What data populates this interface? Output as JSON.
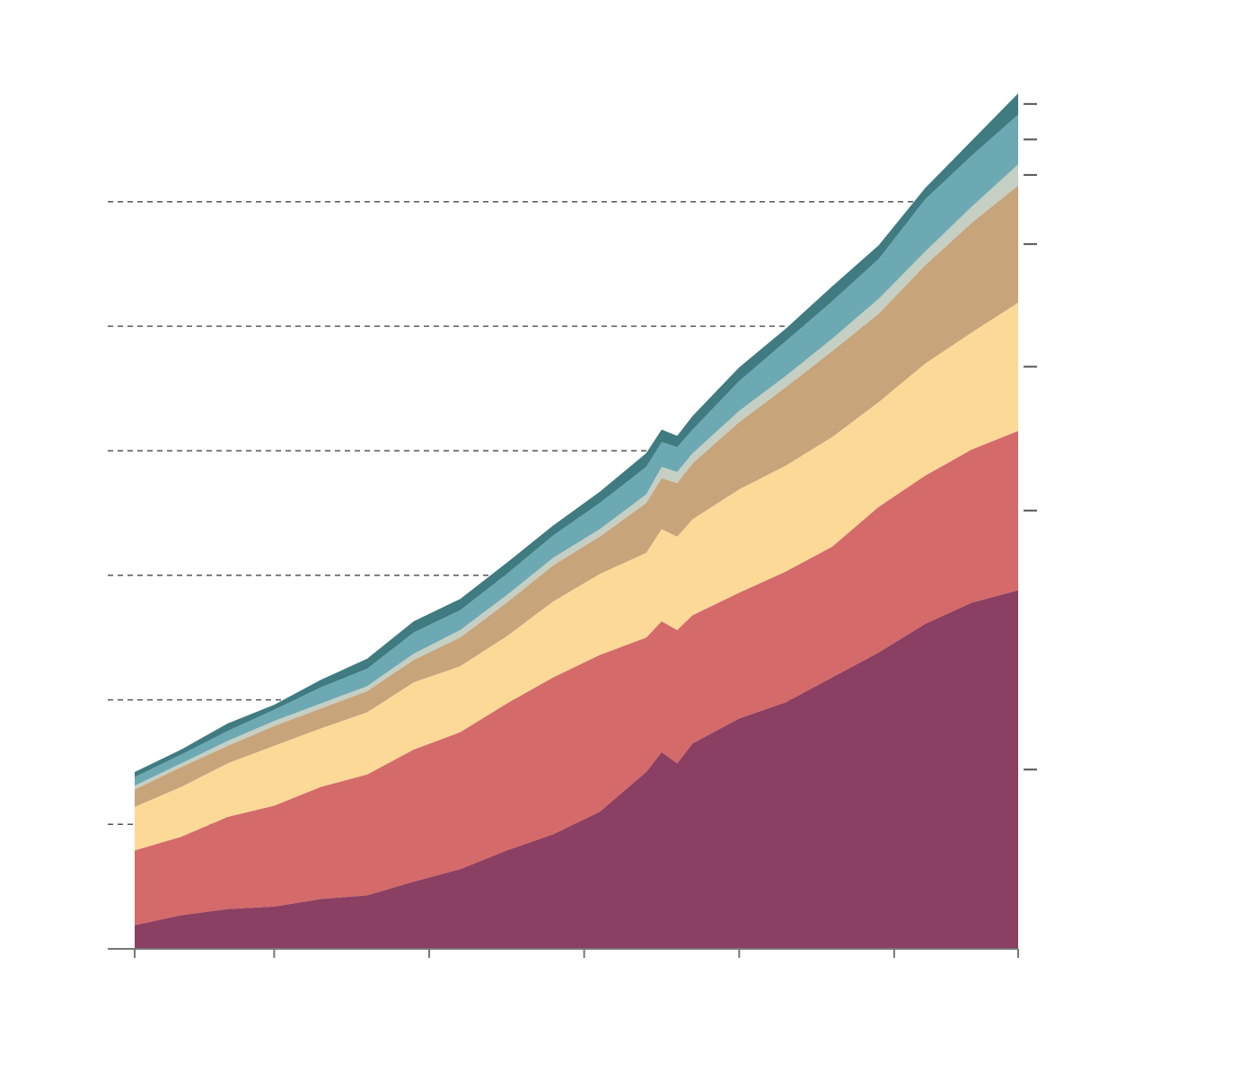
{
  "chart_data": {
    "type": "stacked_area",
    "x": [
      0,
      3,
      6,
      9,
      12,
      15,
      18,
      21,
      24,
      27,
      30,
      33,
      34,
      35,
      36,
      39,
      42,
      45,
      48,
      51,
      54,
      57
    ],
    "xlim": [
      0,
      57
    ],
    "xticks": [
      0,
      9,
      19,
      29,
      39,
      49,
      57
    ],
    "ylim": [
      0,
      7
    ],
    "yticks": [
      0,
      1,
      2,
      3,
      4,
      5,
      6
    ],
    "grid": true,
    "series": [
      {
        "color": "#8b3f62",
        "values": [
          0.19,
          0.27,
          0.32,
          0.34,
          0.4,
          0.43,
          0.54,
          0.64,
          0.79,
          0.92,
          1.1,
          1.42,
          1.58,
          1.49,
          1.65,
          1.85,
          1.98,
          2.18,
          2.38,
          2.61,
          2.78,
          2.88
        ]
      },
      {
        "color": "#d46a6a",
        "values": [
          0.6,
          0.63,
          0.74,
          0.81,
          0.9,
          0.97,
          1.06,
          1.1,
          1.18,
          1.26,
          1.26,
          1.08,
          1.05,
          1.07,
          1.03,
          1.01,
          1.05,
          1.05,
          1.17,
          1.19,
          1.23,
          1.28
        ]
      },
      {
        "color": "#fdd998",
        "values": [
          0.35,
          0.4,
          0.43,
          0.48,
          0.47,
          0.5,
          0.54,
          0.53,
          0.54,
          0.61,
          0.65,
          0.68,
          0.74,
          0.75,
          0.77,
          0.83,
          0.85,
          0.88,
          0.84,
          0.9,
          0.94,
          1.03
        ]
      },
      {
        "color": "#c8a47a",
        "values": [
          0.14,
          0.16,
          0.14,
          0.16,
          0.16,
          0.17,
          0.18,
          0.23,
          0.27,
          0.29,
          0.3,
          0.4,
          0.41,
          0.43,
          0.45,
          0.54,
          0.63,
          0.69,
          0.71,
          0.79,
          0.88,
          0.94
        ]
      },
      {
        "color": "#c5cfc4",
        "values": [
          0.03,
          0.03,
          0.04,
          0.04,
          0.04,
          0.04,
          0.05,
          0.06,
          0.06,
          0.06,
          0.06,
          0.07,
          0.09,
          0.09,
          0.08,
          0.09,
          0.09,
          0.1,
          0.12,
          0.11,
          0.13,
          0.17
        ]
      },
      {
        "color": "#6da9b3",
        "values": [
          0.07,
          0.07,
          0.08,
          0.09,
          0.13,
          0.14,
          0.17,
          0.16,
          0.17,
          0.18,
          0.21,
          0.22,
          0.2,
          0.2,
          0.19,
          0.24,
          0.28,
          0.3,
          0.32,
          0.42,
          0.41,
          0.4
        ]
      },
      {
        "color": "#3f7b80",
        "values": [
          0.04,
          0.04,
          0.06,
          0.04,
          0.06,
          0.08,
          0.09,
          0.09,
          0.09,
          0.08,
          0.09,
          0.11,
          0.1,
          0.09,
          0.11,
          0.11,
          0.1,
          0.12,
          0.11,
          0.09,
          0.12,
          0.17
        ]
      }
    ]
  }
}
